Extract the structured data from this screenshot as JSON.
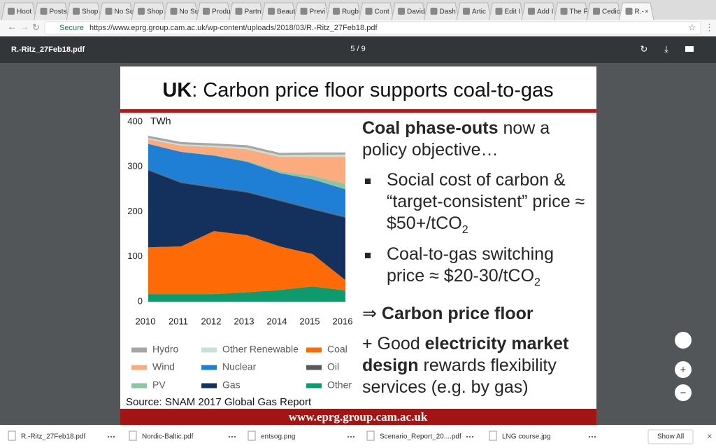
{
  "browser": {
    "tabs": [
      "Hoot",
      "Posts",
      "Shop",
      "No Su",
      "Shop",
      "No Su",
      "Produ",
      "Partn",
      "Beaut",
      "Previ",
      "Rugb",
      "Cont",
      "David",
      "Dash",
      "Artic",
      "Edit I",
      "Add I",
      "The F",
      "Cedic",
      "R.-"
    ],
    "secure": "Secure",
    "url": "https://www.eprg.group.cam.ac.uk/wp-content/uploads/2018/03/R.-Ritz_27Feb18.pdf"
  },
  "viewer": {
    "filename": "R.-Ritz_27Feb18.pdf",
    "page_indicator": "5 / 9"
  },
  "slide": {
    "title_bold": "UK",
    "title_rest": ": Carbon price floor supports coal-to-gas",
    "chart_data": {
      "type": "area",
      "stacked": true,
      "y_label": "TWh",
      "categories": [
        "2010",
        "2011",
        "2012",
        "2013",
        "2014",
        "2015",
        "2016"
      ],
      "ylim": [
        0,
        400
      ],
      "yticks": [
        0,
        100,
        200,
        300,
        400
      ],
      "series": [
        {
          "name": "Other",
          "color": "#0e9a6c",
          "values": [
            17,
            17,
            17,
            21,
            26,
            34,
            25
          ]
        },
        {
          "name": "Coal",
          "color": "#fe6a06",
          "values": [
            104,
            106,
            140,
            127,
            97,
            72,
            23
          ]
        },
        {
          "name": "Gas",
          "color": "#14305c",
          "values": [
            171,
            141,
            96,
            95,
            101,
            99,
            139
          ]
        },
        {
          "name": "Oil",
          "color": "#595959",
          "values": [
            2,
            2,
            2,
            2,
            2,
            2,
            2
          ]
        },
        {
          "name": "Nuclear",
          "color": "#1e7fd4",
          "values": [
            57,
            67,
            70,
            66,
            60,
            65,
            61
          ]
        },
        {
          "name": "PV",
          "color": "#8fc3a2",
          "values": [
            0,
            0,
            1,
            2,
            4,
            8,
            12
          ]
        },
        {
          "name": "Wind",
          "color": "#fcab7f",
          "values": [
            10,
            14,
            18,
            26,
            32,
            42,
            60
          ]
        },
        {
          "name": "Other Renewable",
          "color": "#c6e0d8",
          "values": [
            3,
            3,
            3,
            4,
            4,
            5,
            5
          ]
        },
        {
          "name": "Hydro",
          "color": "#a6a6a6",
          "values": [
            5,
            5,
            5,
            5,
            5,
            5,
            5
          ]
        }
      ]
    },
    "source": "Source: SNAM 2017 Global Gas Report",
    "heading_bold": "Coal phase-outs",
    "heading_rest": "now a policy objective…",
    "bullets": [
      {
        "text": "Social cost of carbon & “target-consistent” price ≈ $50+/tCO",
        "sub": "2"
      },
      {
        "text": "Coal-to-gas switching price ≈ $20-30/tCO",
        "sub": "2"
      }
    ],
    "implies_arrow": "⇒",
    "implies_bold": "Carbon price floor",
    "plus_lead": "+ Good",
    "plus_bold": "electricity market design",
    "plus_rest": "rewards flexibility services (e.g. by gas)",
    "footer": "www.eprg.group.cam.ac.uk"
  },
  "downloads": {
    "items": [
      "R.-Ritz_27Feb18.pdf",
      "Nordic-Baltic.pdf",
      "entsog.png",
      "Scenario_Report_20....pdf",
      "LNG course.jpg"
    ],
    "show_all": "Show All"
  }
}
